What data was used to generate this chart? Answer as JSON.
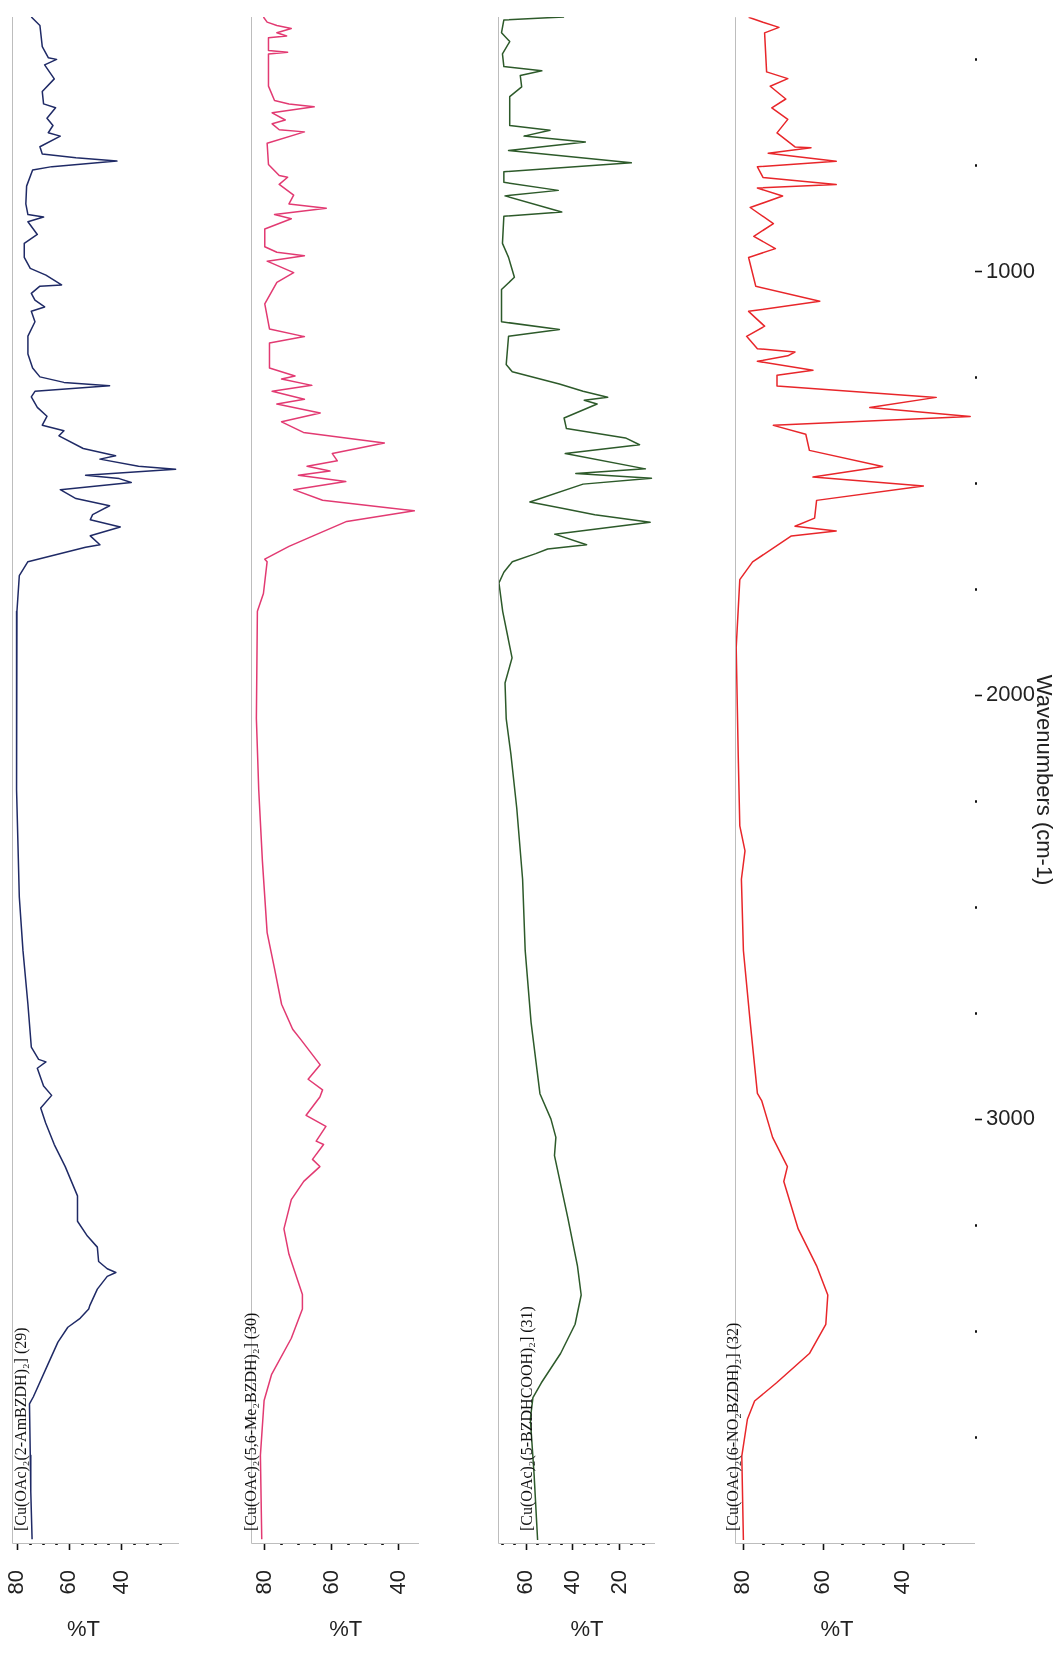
{
  "chart_data": [
    {
      "type": "line",
      "orientation": "horizontal",
      "xlabel": "%T",
      "ylim": [
        4000,
        400
      ],
      "xlim": [
        82,
        18
      ],
      "tick_labels": "x",
      "xticks": [
        80,
        {
          "value": 75,
          "label": null
        },
        {
          "value": 70,
          "label": null
        },
        {
          "value": 65,
          "label": null
        },
        60,
        {
          "value": 55,
          "label": null
        },
        {
          "value": 50,
          "label": null
        },
        {
          "value": 45,
          "label": null
        },
        40,
        {
          "value": 35,
          "label": null
        },
        {
          "value": 30,
          "label": null
        },
        {
          "value": 25,
          "label": null
        }
      ],
      "x": [
        400,
        420,
        470,
        496,
        500,
        513,
        546,
        576,
        605,
        614,
        639,
        656,
        673,
        681,
        706,
        723,
        732,
        740,
        753,
        761,
        799,
        841,
        866,
        872,
        883,
        913,
        934,
        967,
        993,
        1009,
        1032,
        1035,
        1052,
        1068,
        1084,
        1094,
        1119,
        1153,
        1195,
        1228,
        1249,
        1262,
        1270,
        1283,
        1296,
        1321,
        1342,
        1363,
        1376,
        1388,
        1418,
        1435,
        1443,
        1460,
        1467,
        1481,
        1489,
        1498,
        1515,
        1536,
        1553,
        1574,
        1586,
        1603,
        1624,
        1645,
        1651,
        1685,
        1718,
        1802,
        1971,
        2223,
        2476,
        2602,
        2729,
        2830,
        2859,
        2865,
        2880,
        2922,
        2944,
        2974,
        3009,
        3060,
        3112,
        3181,
        3241,
        3276,
        3302,
        3336,
        3353,
        3362,
        3371,
        3401,
        3440,
        3448,
        3470,
        3491,
        3526,
        3578,
        3655,
        3672,
        3793,
        3879,
        3991
      ],
      "series": [
        {
          "name": "[Cu(OAc)₂(2-AmBZDH)₂] (29)",
          "color": "#1f2a66",
          "values": [
            74.6,
            71.3,
            70.4,
            68.1,
            64.9,
            69.5,
            65.8,
            70.4,
            69.9,
            65.3,
            68.6,
            66.3,
            68.1,
            63.5,
            71.3,
            70.4,
            57.5,
            41.8,
            66.7,
            74.1,
            76.4,
            76.7,
            75.9,
            69.9,
            75.9,
            72.3,
            77.3,
            77.3,
            75.0,
            69.0,
            63.0,
            71.3,
            74.6,
            73.2,
            69.5,
            74.6,
            73.2,
            75.9,
            75.9,
            74.1,
            71.3,
            62.1,
            44.6,
            73.2,
            74.6,
            72.3,
            68.6,
            70.4,
            62.1,
            64.0,
            54.7,
            42.3,
            48.3,
            33.5,
            19.3,
            53.8,
            40.9,
            36.3,
            63.5,
            57.5,
            44.6,
            51.1,
            52.0,
            40.5,
            52.0,
            48.3,
            53.8,
            75.9,
            79.2,
            80.1,
            80.4,
            80.1,
            79.2,
            77.8,
            75.9,
            74.6,
            71.8,
            69.0,
            72.3,
            69.9,
            66.8,
            71.0,
            69.1,
            65.8,
            61.6,
            56.9,
            56.9,
            53.1,
            49.3,
            48.8,
            45.5,
            42.2,
            45.5,
            49.3,
            52.2,
            52.6,
            55.9,
            60.6,
            64.4,
            68.2,
            73.8,
            75.3,
            75.0,
            74.8,
            74.3
          ]
        }
      ]
    },
    {
      "type": "line",
      "orientation": "horizontal",
      "xlabel": "%T",
      "ylim": [
        4000,
        400
      ],
      "xlim": [
        84,
        34
      ],
      "tick_labels": "x",
      "xticks": [
        80,
        {
          "value": 75,
          "label": null
        },
        {
          "value": 70,
          "label": null
        },
        {
          "value": 65,
          "label": null
        },
        60,
        {
          "value": 55,
          "label": null
        },
        {
          "value": 50,
          "label": null
        },
        {
          "value": 45,
          "label": null
        },
        40
      ],
      "x": [
        400,
        412,
        420,
        427,
        437,
        445,
        449,
        479,
        483,
        487,
        563,
        597,
        605,
        612,
        626,
        643,
        652,
        666,
        671,
        698,
        748,
        774,
        778,
        795,
        820,
        841,
        851,
        866,
        876,
        900,
        942,
        955,
        963,
        976,
        1003,
        1026,
        1077,
        1136,
        1154,
        1169,
        1228,
        1247,
        1254,
        1269,
        1283,
        1302,
        1313,
        1334,
        1355,
        1380,
        1405,
        1430,
        1447,
        1460,
        1471,
        1481,
        1496,
        1515,
        1540,
        1565,
        1590,
        1624,
        1649,
        1679,
        1685,
        1760,
        1802,
        2055,
        2223,
        2392,
        2560,
        2645,
        2729,
        2788,
        2813,
        2872,
        2906,
        2931,
        2948,
        2991,
        3017,
        3052,
        3060,
        3095,
        3112,
        3147,
        3190,
        3259,
        3319,
        3414,
        3448,
        3517,
        3603,
        3664,
        3793,
        3991
      ],
      "series": [
        {
          "name": "[Cu(OAc)₂(5,6-Me₂BZDH)₂] (30)",
          "color": "#e23a72",
          "values": [
            80.3,
            79.2,
            76.3,
            72.0,
            76.3,
            73.4,
            78.8,
            78.8,
            73.1,
            78.8,
            78.8,
            77.0,
            72.7,
            65.2,
            77.7,
            73.8,
            77.7,
            75.6,
            68.1,
            79.2,
            78.8,
            75.6,
            73.1,
            75.6,
            71.3,
            72.7,
            61.6,
            77.0,
            72.0,
            79.9,
            79.9,
            76.3,
            68.1,
            79.2,
            71.3,
            76.3,
            79.9,
            78.5,
            68.1,
            78.5,
            78.5,
            70.9,
            74.9,
            65.9,
            77.7,
            68.1,
            76.3,
            63.4,
            74.9,
            68.4,
            44.3,
            59.8,
            58.3,
            67.3,
            60.5,
            69.9,
            55.8,
            71.3,
            62.7,
            35.4,
            55.5,
            65.5,
            72.7,
            79.9,
            79.2,
            80.3,
            82.1,
            82.4,
            81.7,
            80.6,
            79.2,
            77.0,
            74.9,
            71.6,
            69.1,
            63.4,
            67.0,
            62.7,
            63.5,
            67.6,
            61.7,
            64.6,
            62.4,
            65.7,
            63.5,
            68.3,
            72.0,
            74.2,
            72.7,
            68.7,
            68.7,
            72.0,
            77.9,
            80.1,
            81.2,
            80.8
          ]
        }
      ]
    },
    {
      "type": "line",
      "orientation": "horizontal",
      "xlabel": "%T",
      "ylim": [
        4000,
        400
      ],
      "xlim": [
        72,
        5
      ],
      "tick_labels": "x",
      "xticks": [
        {
          "value": 70,
          "label": null
        },
        {
          "value": 65,
          "label": null
        },
        60,
        {
          "value": 55,
          "label": null
        },
        {
          "value": 50,
          "label": null
        },
        {
          "value": 45,
          "label": null
        },
        40,
        {
          "value": 35,
          "label": null
        },
        {
          "value": 30,
          "label": null
        },
        {
          "value": 25,
          "label": null
        },
        20,
        {
          "value": 15,
          "label": null
        },
        {
          "value": 10,
          "label": null
        }
      ],
      "x": [
        400,
        402,
        407,
        437,
        458,
        487,
        517,
        527,
        538,
        565,
        588,
        656,
        667,
        681,
        695,
        715,
        744,
        765,
        790,
        809,
        822,
        860,
        870,
        934,
        967,
        1014,
        1043,
        1119,
        1137,
        1153,
        1220,
        1237,
        1266,
        1283,
        1297,
        1304,
        1313,
        1346,
        1371,
        1393,
        1409,
        1430,
        1466,
        1477,
        1488,
        1502,
        1544,
        1574,
        1592,
        1620,
        1645,
        1655,
        1666,
        1685,
        1710,
        1735,
        1802,
        1912,
        1971,
        2055,
        2139,
        2266,
        2434,
        2602,
        2771,
        2940,
        3000,
        3043,
        3086,
        3233,
        3346,
        3415,
        3484,
        3553,
        3622,
        3657,
        3708,
        3838,
        3993
      ],
      "series": [
        {
          "name": "[Cu(OAc)₂(5-BZDHCOOH)₂] (31)",
          "color": "#2d5a2a",
          "values": [
            43.8,
            50.8,
            69.5,
            70.5,
            67.0,
            70.1,
            69.5,
            53.3,
            62.5,
            61.9,
            67.0,
            67.0,
            49.8,
            60.9,
            34.7,
            67.5,
            15.1,
            69.5,
            69.5,
            46.3,
            69.0,
            44.8,
            69.5,
            70.1,
            67.5,
            65.0,
            70.5,
            70.5,
            45.8,
            67.5,
            68.5,
            65.9,
            45.8,
            35.7,
            25.2,
            35.2,
            29.7,
            43.8,
            42.8,
            17.6,
            11.6,
            43.3,
            9.1,
            38.8,
            6.5,
            35.7,
            58.4,
            30.7,
            7.1,
            47.8,
            34.2,
            50.8,
            55.9,
            65.9,
            69.5,
            71.6,
            70.0,
            66.0,
            69.0,
            68.5,
            66.5,
            64.0,
            61.5,
            60.4,
            57.9,
            54.1,
            49.4,
            47.3,
            47.9,
            42.2,
            38.1,
            36.5,
            39.1,
            45.3,
            53.5,
            57.1,
            58.2,
            56.6,
            55.1
          ]
        }
      ]
    },
    {
      "type": "line",
      "orientation": "horizontal",
      "xlabel": "%T",
      "ylabel": "Wavenumbers (cm-1)",
      "ylim": [
        4000,
        400
      ],
      "xlim": [
        82,
        22
      ],
      "yticks": [
        {
          "value": 500,
          "label": null
        },
        {
          "value": 750,
          "label": null
        },
        1000,
        {
          "value": 1250,
          "label": null
        },
        {
          "value": 1500,
          "label": null
        },
        {
          "value": 1750,
          "label": null
        },
        2000,
        {
          "value": 2250,
          "label": null
        },
        {
          "value": 2500,
          "label": null
        },
        {
          "value": 2750,
          "label": null
        },
        3000,
        {
          "value": 3250,
          "label": null
        },
        {
          "value": 3500,
          "label": null
        },
        {
          "value": 3750,
          "label": null
        }
      ],
      "xticks": [
        80,
        {
          "value": 75,
          "label": null
        },
        {
          "value": 70,
          "label": null
        },
        {
          "value": 65,
          "label": null
        },
        60,
        {
          "value": 55,
          "label": null
        },
        {
          "value": 50,
          "label": null
        },
        {
          "value": 45,
          "label": null
        },
        40,
        {
          "value": 35,
          "label": null
        },
        {
          "value": 30,
          "label": null
        }
      ],
      "x": [
        400,
        412,
        424,
        437,
        529,
        545,
        563,
        593,
        614,
        641,
        673,
        706,
        708,
        721,
        740,
        753,
        778,
        795,
        803,
        822,
        849,
        887,
        917,
        946,
        967,
        1035,
        1070,
        1094,
        1110,
        1129,
        1153,
        1182,
        1190,
        1199,
        1212,
        1233,
        1245,
        1270,
        1297,
        1321,
        1342,
        1363,
        1384,
        1422,
        1460,
        1485,
        1506,
        1540,
        1582,
        1601,
        1612,
        1624,
        1685,
        1727,
        1887,
        2139,
        2308,
        2367,
        2434,
        2602,
        2771,
        2939,
        2957,
        3043,
        3112,
        3147,
        3259,
        3346,
        3415,
        3484,
        3553,
        3622,
        3665,
        3708,
        3795,
        3993
      ],
      "series": [
        {
          "name": "[Cu(OAc)₂(6-NO₂BZDH)₂] (32)",
          "color": "#e8262a",
          "values": [
            78.6,
            75.0,
            71.0,
            74.6,
            74.1,
            68.8,
            73.2,
            69.3,
            72.8,
            68.8,
            71.5,
            67.0,
            63.0,
            73.7,
            56.7,
            76.4,
            75.0,
            56.7,
            76.4,
            70.1,
            78.2,
            72.4,
            77.3,
            71.9,
            78.6,
            76.8,
            60.8,
            78.6,
            76.8,
            74.6,
            79.1,
            76.4,
            67.0,
            68.8,
            76.4,
            62.5,
            71.5,
            71.5,
            31.7,
            48.3,
            23.2,
            72.4,
            64.3,
            63.4,
            45.1,
            62.5,
            34.9,
            61.6,
            62.1,
            67.0,
            56.7,
            67.9,
            77.6,
            80.8,
            81.7,
            81.2,
            80.8,
            79.5,
            80.4,
            79.9,
            78.2,
            76.4,
            75.3,
            72.6,
            68.9,
            69.8,
            66.2,
            61.6,
            58.8,
            59.3,
            63.4,
            71.6,
            77.1,
            78.9,
            80.3,
            79.9
          ]
        }
      ]
    }
  ]
}
